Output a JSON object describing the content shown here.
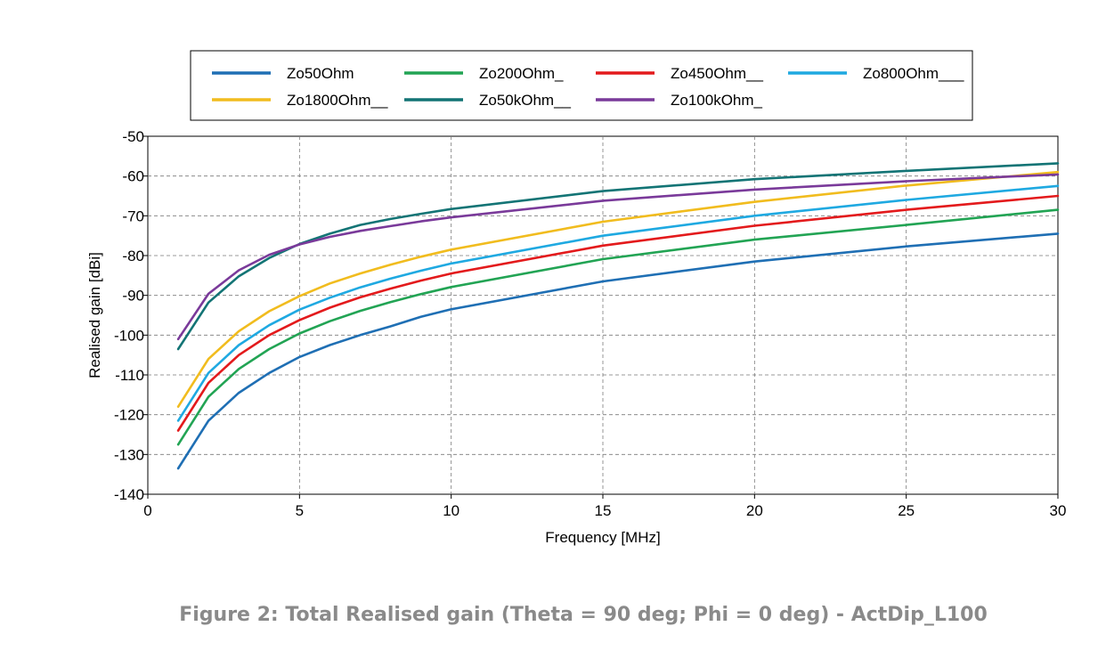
{
  "caption": "Figure 2: Total Realised gain (Theta = 90 deg; Phi = 0 deg) - ActDip_L100",
  "chart_data": {
    "type": "line",
    "title": "",
    "xlabel": "Frequency [MHz]",
    "ylabel": "Realised gain [dBi]",
    "xlim": [
      0,
      30
    ],
    "ylim": [
      -140,
      -50
    ],
    "xticks": [
      0,
      5,
      10,
      15,
      20,
      25,
      30
    ],
    "yticks": [
      -140,
      -130,
      -120,
      -110,
      -100,
      -90,
      -80,
      -70,
      -60,
      -50
    ],
    "grid": true,
    "legend_position": "top",
    "x": [
      1,
      2,
      3,
      4,
      5,
      6,
      7,
      8,
      9,
      10,
      15,
      20,
      25,
      30
    ],
    "series": [
      {
        "name": "Zo50Ohm",
        "color": "#1f6fb4",
        "values": [
          -133.5,
          -121.5,
          -114.5,
          -109.5,
          -105.5,
          -102.5,
          -100,
          -97.8,
          -95.4,
          -93.5,
          -86.5,
          -81.5,
          -77.7,
          -74.5
        ]
      },
      {
        "name": "Zo200Ohm_",
        "color": "#22a454",
        "values": [
          -127.5,
          -115.5,
          -108.5,
          -103.5,
          -99.6,
          -96.5,
          -93.9,
          -91.7,
          -89.7,
          -87.9,
          -80.9,
          -76,
          -72.3,
          -68.5
        ]
      },
      {
        "name": "Zo450Ohm__",
        "color": "#e31a1c",
        "values": [
          -124,
          -112,
          -105,
          -100,
          -96.2,
          -93.1,
          -90.5,
          -88.3,
          -86.3,
          -84.5,
          -77.5,
          -72.5,
          -68.5,
          -65
        ]
      },
      {
        "name": "Zo800Ohm___",
        "color": "#1fa9e1",
        "values": [
          -121.5,
          -109.5,
          -102.5,
          -97.5,
          -93.6,
          -90.6,
          -88,
          -85.8,
          -83.8,
          -82,
          -75,
          -70,
          -66,
          -62.5
        ]
      },
      {
        "name": "Zo1800Ohm__",
        "color": "#f1bc1e",
        "values": [
          -118,
          -106,
          -99,
          -94,
          -90.2,
          -87,
          -84.5,
          -82.3,
          -80.3,
          -78.5,
          -71.5,
          -66.5,
          -62.4,
          -59
        ]
      },
      {
        "name": "Zo50kOhm__",
        "color": "#137475",
        "values": [
          -103.5,
          -91.8,
          -85.2,
          -80.6,
          -77.1,
          -74.5,
          -72.3,
          -70.8,
          -69.5,
          -68.3,
          -63.8,
          -60.8,
          -58.7,
          -56.8
        ]
      },
      {
        "name": "Zo100kOhm_",
        "color": "#7a3a9a",
        "values": [
          -101,
          -89.6,
          -83.7,
          -79.8,
          -77.2,
          -75.3,
          -73.8,
          -72.6,
          -71.4,
          -70.4,
          -66.2,
          -63.4,
          -61.3,
          -59.6
        ]
      }
    ]
  }
}
